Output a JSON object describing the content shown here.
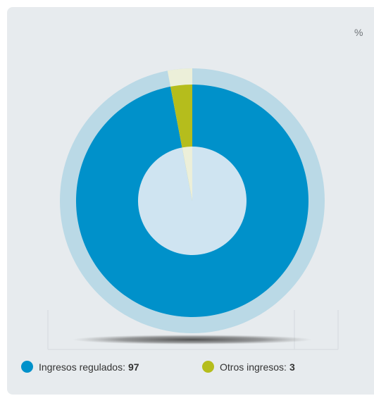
{
  "unit_label": "%",
  "chart_data": {
    "type": "pie",
    "title": "",
    "unit": "%",
    "categories": [
      "Ingresos regulados",
      "Otros ingresos"
    ],
    "values": [
      97,
      3
    ],
    "colors": [
      "#0091ca",
      "#b5bd1c"
    ],
    "inner_colors": [
      "#cfe4f1",
      "#ecefd9"
    ],
    "ring_color": "#bad9e6",
    "card_color": "#e7ebee",
    "start_angle_deg": 0,
    "direction": "clockwise",
    "legend_position": "bottom"
  },
  "legend": [
    {
      "label": "Ingresos regulados:",
      "value": "97",
      "color": "#0091ca"
    },
    {
      "label": "Otros ingresos:",
      "value": "3",
      "color": "#b5bd1c"
    }
  ]
}
